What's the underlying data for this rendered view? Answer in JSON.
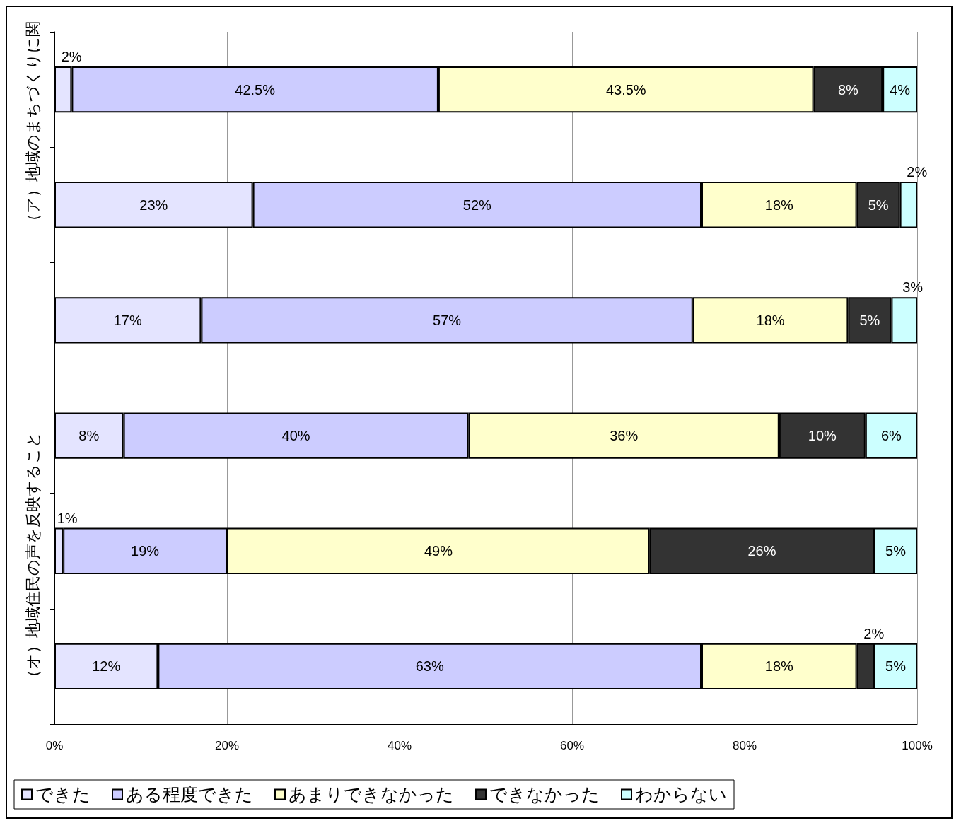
{
  "chart_data": {
    "type": "bar",
    "orientation": "horizontal",
    "stacked": true,
    "categories": [
      null,
      null,
      null,
      null,
      null,
      null
    ],
    "series": [
      {
        "name": "できた",
        "color": "#e4e4ff",
        "values": [
          2,
          23,
          17,
          8,
          1,
          12
        ],
        "value_labels": [
          "2%",
          "23%",
          "17%",
          "8%",
          "1%",
          "12%"
        ]
      },
      {
        "name": "ある程度できた",
        "color": "#ccccff",
        "values": [
          42.5,
          52,
          57,
          40,
          19,
          63
        ],
        "value_labels": [
          "42.5%",
          "52%",
          "57%",
          "40%",
          "19%",
          "63%"
        ]
      },
      {
        "name": "あまりできなかった",
        "color": "#ffffcc",
        "values": [
          43.5,
          18,
          18,
          36,
          49,
          18
        ],
        "value_labels": [
          "43.5%",
          "18%",
          "18%",
          "36%",
          "49%",
          "18%"
        ]
      },
      {
        "name": "できなかった",
        "color": "#333333",
        "values": [
          8,
          5,
          5,
          10,
          26,
          2
        ],
        "value_labels": [
          "8%",
          "5%",
          "5%",
          "10%",
          "26%",
          "2%"
        ]
      },
      {
        "name": "わからない",
        "color": "#ccffff",
        "values": [
          4,
          2,
          3,
          6,
          5,
          5
        ],
        "value_labels": [
          "4%",
          "2%",
          "3%",
          "6%",
          "5%",
          "5%"
        ]
      }
    ],
    "xlim": [
      0,
      100
    ],
    "xticks": [
      {
        "value": 0,
        "label": "0%"
      },
      {
        "value": 20,
        "label": "20%"
      },
      {
        "value": 40,
        "label": "40%"
      },
      {
        "value": 60,
        "label": "60%"
      },
      {
        "value": 80,
        "label": "80%"
      },
      {
        "value": 100,
        "label": "100%"
      }
    ],
    "grid": "x",
    "legend": "bottom",
    "annotations": [
      "（ア）地域のまちづくりに関",
      "（オ）地域住民の声を反映すること"
    ]
  }
}
